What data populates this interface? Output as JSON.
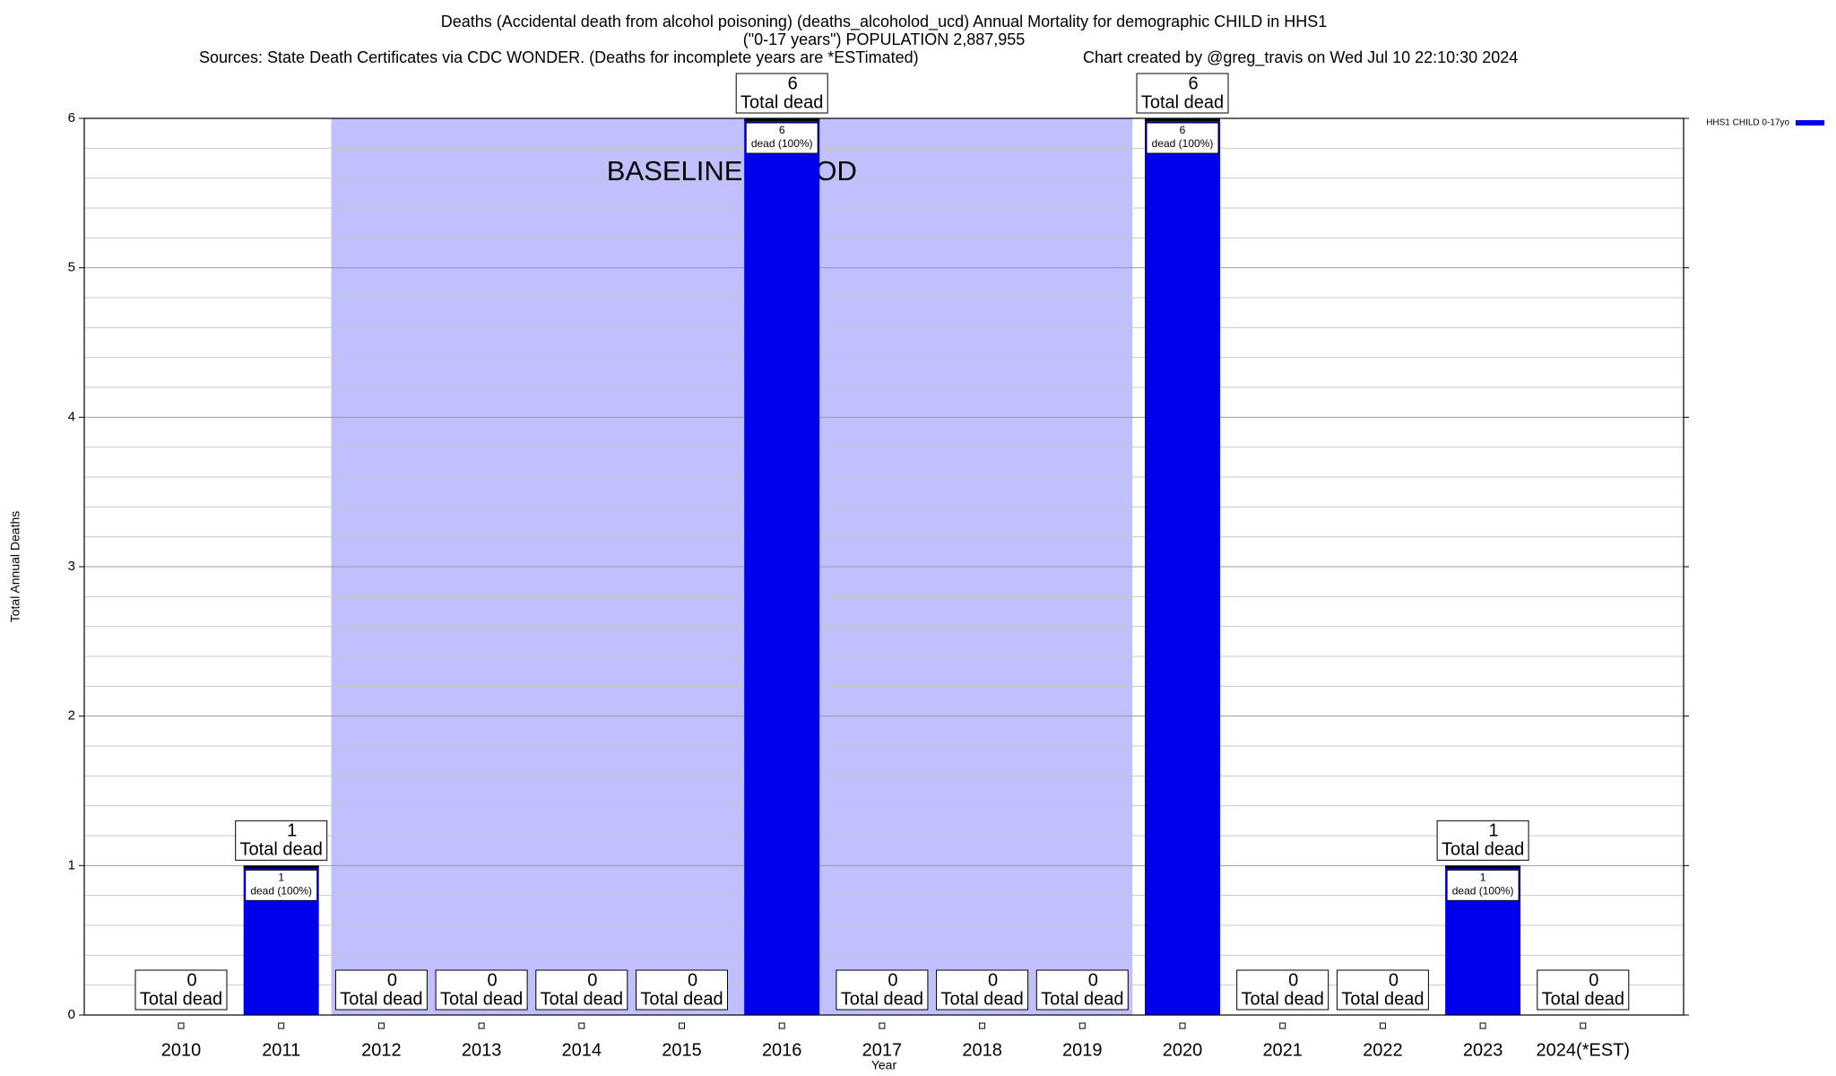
{
  "chart_data": {
    "type": "bar",
    "title": "Deaths (Accidental death from alcohol poisoning) (deaths_alcoholod_ucd) Annual Mortality for demographic CHILD in HHS1",
    "subtitle": "(\"0-17 years\") POPULATION 2,887,955",
    "sources": "Sources: State Death Certificates via CDC WONDER. (Deaths for incomplete years are *ESTimated)",
    "credit": "Chart created by @greg_travis on Wed Jul 10 22:10:30 2024",
    "y_label": "Total Annual Deaths",
    "x_label": "Year",
    "categories": [
      "2010",
      "2011",
      "2012",
      "2013",
      "2014",
      "2015",
      "2016",
      "2017",
      "2018",
      "2019",
      "2020",
      "2021",
      "2022",
      "2023",
      "2024(*EST)"
    ],
    "series": [
      {
        "name": "HHS1 CHILD 0-17yo",
        "color": "#0000ee",
        "values": [
          0,
          1,
          0,
          0,
          0,
          0,
          6,
          0,
          0,
          0,
          6,
          0,
          0,
          1,
          0
        ],
        "share_labels": [
          null,
          "dead (100%)",
          null,
          null,
          null,
          null,
          "dead (100%)",
          null,
          null,
          null,
          "dead (100%)",
          null,
          null,
          "dead (100%)",
          null
        ]
      }
    ],
    "total_label": "Total dead",
    "baseline": {
      "label": "BASELINE PERIOD",
      "start": "2012",
      "end": "2019",
      "color": "#c0c0ff"
    },
    "ylim": [
      0,
      6
    ],
    "yticks": [
      0,
      1,
      2,
      3,
      4,
      5,
      6
    ],
    "minor_grid": 5,
    "grid": true,
    "legend": "top-right"
  }
}
